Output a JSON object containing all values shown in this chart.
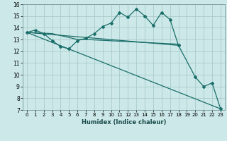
{
  "title": "",
  "xlabel": "Humidex (Indice chaleur)",
  "bg_color": "#cce8e8",
  "grid_color": "#aacccc",
  "line_color": "#1a6e6a",
  "xlim": [
    -0.5,
    23.5
  ],
  "ylim": [
    7,
    16
  ],
  "xticks": [
    0,
    1,
    2,
    3,
    4,
    5,
    6,
    7,
    8,
    9,
    10,
    11,
    12,
    13,
    14,
    15,
    16,
    17,
    18,
    19,
    20,
    21,
    22,
    23
  ],
  "yticks": [
    7,
    8,
    9,
    10,
    11,
    12,
    13,
    14,
    15,
    16
  ],
  "line1": {
    "x": [
      0,
      1,
      2,
      3,
      4,
      5,
      6,
      7,
      8,
      9,
      10,
      11,
      12,
      13,
      14,
      15,
      16,
      17,
      18
    ],
    "y": [
      13.6,
      13.8,
      13.5,
      12.9,
      12.4,
      12.2,
      12.9,
      13.1,
      13.5,
      14.1,
      14.4,
      15.3,
      14.9,
      15.6,
      15.0,
      14.2,
      15.3,
      14.7,
      12.5
    ]
  },
  "line2": {
    "x": [
      0,
      3,
      6,
      7,
      18
    ],
    "y": [
      13.6,
      13.5,
      13.0,
      13.0,
      12.6
    ]
  },
  "line3": {
    "x": [
      0,
      18,
      20,
      21,
      22,
      23
    ],
    "y": [
      13.6,
      12.5,
      9.8,
      9.0,
      9.3,
      7.1
    ]
  },
  "line4": {
    "x": [
      0,
      23
    ],
    "y": [
      13.6,
      7.1
    ]
  }
}
